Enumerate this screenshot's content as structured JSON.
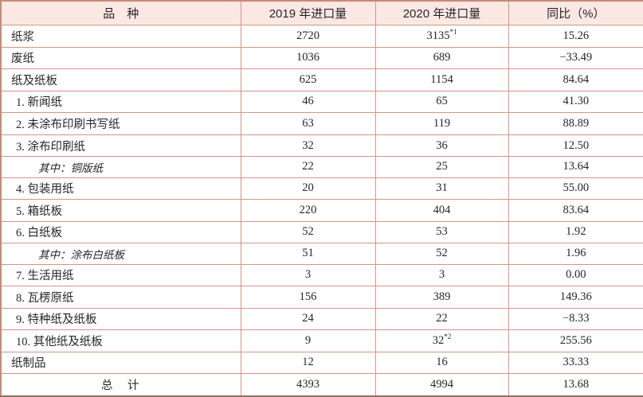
{
  "table": {
    "title_semantic": "paper-imports-2019-2020",
    "columns": [
      {
        "label": "品　种"
      },
      {
        "label": "2019 年进口量"
      },
      {
        "label": "2020 年进口量"
      },
      {
        "label": "同比（%）"
      }
    ],
    "rows": [
      {
        "label": "纸浆",
        "v2019": "2720",
        "v2020": "3135",
        "v2020_sup": "*1",
        "yoy": "15.26",
        "style": "group"
      },
      {
        "label": "废纸",
        "v2019": "1036",
        "v2020": "689",
        "yoy": "−33.49",
        "style": "group"
      },
      {
        "label": "纸及纸板",
        "v2019": "625",
        "v2020": "1154",
        "yoy": "84.64",
        "style": "group"
      },
      {
        "label": "1. 新闻纸",
        "v2019": "46",
        "v2020": "65",
        "yoy": "41.30",
        "style": "item"
      },
      {
        "label": "2. 未涂布印刷书写纸",
        "v2019": "63",
        "v2020": "119",
        "yoy": "88.89",
        "style": "item"
      },
      {
        "label": "3. 涂布印刷纸",
        "v2019": "32",
        "v2020": "36",
        "yoy": "12.50",
        "style": "item"
      },
      {
        "label": "其中：铜版纸",
        "v2019": "22",
        "v2020": "25",
        "yoy": "13.64",
        "style": "sub"
      },
      {
        "label": "4. 包装用纸",
        "v2019": "20",
        "v2020": "31",
        "yoy": "55.00",
        "style": "item"
      },
      {
        "label": "5. 箱纸板",
        "v2019": "220",
        "v2020": "404",
        "yoy": "83.64",
        "style": "item"
      },
      {
        "label": "6. 白纸板",
        "v2019": "52",
        "v2020": "53",
        "yoy": "1.92",
        "style": "item"
      },
      {
        "label": "其中：涂布白纸板",
        "v2019": "51",
        "v2020": "52",
        "yoy": "1.96",
        "style": "sub"
      },
      {
        "label": "7. 生活用纸",
        "v2019": "3",
        "v2020": "3",
        "yoy": "0.00",
        "style": "item"
      },
      {
        "label": "8. 瓦楞原纸",
        "v2019": "156",
        "v2020": "389",
        "yoy": "149.36",
        "style": "item"
      },
      {
        "label": "9. 特种纸及纸板",
        "v2019": "24",
        "v2020": "22",
        "yoy": "−8.33",
        "style": "item"
      },
      {
        "label": "10. 其他纸及纸板",
        "v2019": "9",
        "v2020": "32",
        "v2020_sup": "*2",
        "yoy": "255.56",
        "style": "item"
      },
      {
        "label": "纸制品",
        "v2019": "12",
        "v2020": "16",
        "yoy": "33.33",
        "style": "group"
      },
      {
        "label": "总　计",
        "v2019": "4393",
        "v2020": "4994",
        "yoy": "13.68",
        "style": "total"
      }
    ]
  },
  "colors": {
    "header_background": "#fce8e3",
    "grid_border": "#cf9685",
    "outer_border": "#c98a74",
    "bottom_rule": "#8d7164",
    "text": "#262626"
  },
  "chart_data": {
    "type": "table",
    "title": "",
    "columns": [
      "品种",
      "2019年进口量",
      "2020年进口量",
      "同比（%）"
    ],
    "series": [
      {
        "name": "2019年进口量",
        "values": [
          2720,
          1036,
          625,
          46,
          63,
          32,
          22,
          20,
          220,
          52,
          51,
          3,
          156,
          24,
          9,
          12,
          4393
        ]
      },
      {
        "name": "2020年进口量",
        "values": [
          3135,
          689,
          1154,
          65,
          119,
          36,
          25,
          31,
          404,
          53,
          52,
          3,
          389,
          22,
          32,
          16,
          4994
        ]
      },
      {
        "name": "同比（%）",
        "values": [
          15.26,
          -33.49,
          84.64,
          41.3,
          88.89,
          12.5,
          13.64,
          55.0,
          83.64,
          1.92,
          1.96,
          0.0,
          149.36,
          -8.33,
          255.56,
          33.33,
          13.68
        ]
      }
    ],
    "categories": [
      "纸浆",
      "废纸",
      "纸及纸板",
      "1. 新闻纸",
      "2. 未涂布印刷书写纸",
      "3. 涂布印刷纸",
      "其中：铜版纸",
      "4. 包装用纸",
      "5. 箱纸板",
      "6. 白纸板",
      "其中：涂布白纸板",
      "7. 生活用纸",
      "8. 瓦楞原纸",
      "9. 特种纸及纸板",
      "10. 其他纸及纸板",
      "纸制品",
      "总计"
    ]
  }
}
